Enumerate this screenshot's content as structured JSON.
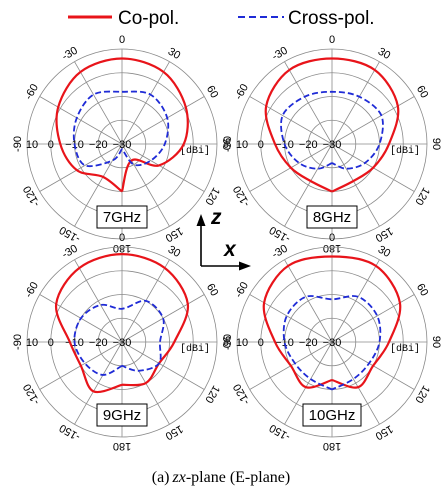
{
  "legend": {
    "copol_label": "Co-pol.",
    "xpol_label": "Cross-pol."
  },
  "colors": {
    "copol": "#e8141a",
    "xpol": "#1f2bd6",
    "grid": "#8a8a8a"
  },
  "axis_letters": {
    "z": "z",
    "x": "x"
  },
  "caption": {
    "prefix": "(a)",
    "plane": "zx",
    "suffix": "-plane (E-plane)"
  },
  "chart_data": [
    {
      "type": "polar",
      "frequency_label": "7GHz",
      "unit_label": "[dBi]",
      "radial_ticks": [
        "10",
        "0",
        "-10",
        "-20",
        "-30"
      ],
      "radial_range": [
        -30,
        10
      ],
      "angle_ticks": [
        "0",
        "30",
        "60",
        "90",
        "120",
        "150",
        "180",
        "-150",
        "-120",
        "-90",
        "-60",
        "-30"
      ],
      "series": [
        {
          "name": "Co-pol.",
          "style": "solid",
          "angles": [
            -180,
            -150,
            -120,
            -90,
            -60,
            -30,
            0,
            30,
            60,
            90,
            120,
            150,
            180
          ],
          "values": [
            -10,
            -14,
            -8,
            -4,
            1,
            5,
            6,
            5,
            1,
            -4,
            -12,
            -22,
            -10
          ]
        },
        {
          "name": "Cross-pol.",
          "style": "dashed",
          "angles": [
            -180,
            -150,
            -120,
            -90,
            -60,
            -30,
            0,
            30,
            60,
            90,
            120,
            150,
            180
          ],
          "values": [
            -28,
            -22,
            -12,
            -10,
            -8,
            -6,
            -8,
            -6,
            -8,
            -12,
            -16,
            -20,
            -28
          ]
        }
      ]
    },
    {
      "type": "polar",
      "frequency_label": "8GHz",
      "unit_label": "[dBi]",
      "radial_ticks": [
        "10",
        "0",
        "-10",
        "-20",
        "-30"
      ],
      "radial_range": [
        -30,
        10
      ],
      "angle_ticks": [
        "0",
        "30",
        "60",
        "90",
        "120",
        "150",
        "180",
        "-150",
        "-120",
        "-90",
        "-60",
        "-30"
      ],
      "series": [
        {
          "name": "Co-pol.",
          "style": "solid",
          "angles": [
            -180,
            -150,
            -120,
            -90,
            -60,
            -30,
            0,
            30,
            60,
            90,
            120,
            150,
            180
          ],
          "values": [
            -10,
            -12,
            -10,
            -6,
            2,
            6,
            6,
            6,
            2,
            -6,
            -10,
            -12,
            -10
          ]
        },
        {
          "name": "Cross-pol.",
          "style": "dashed",
          "angles": [
            -180,
            -150,
            -120,
            -90,
            -60,
            -30,
            0,
            30,
            60,
            90,
            120,
            150,
            180
          ],
          "values": [
            -22,
            -18,
            -14,
            -10,
            -6,
            -7,
            -8,
            -7,
            -6,
            -10,
            -14,
            -18,
            -22
          ]
        }
      ]
    },
    {
      "type": "polar",
      "frequency_label": "9GHz",
      "unit_label": "[dBi]",
      "radial_ticks": [
        "10",
        "0",
        "-10",
        "-20",
        "-30"
      ],
      "radial_range": [
        -30,
        10
      ],
      "angle_ticks": [
        "0",
        "30",
        "60",
        "90",
        "120",
        "150",
        "180",
        "-150",
        "-120",
        "-90",
        "-60",
        "-30"
      ],
      "series": [
        {
          "name": "Co-pol.",
          "style": "solid",
          "angles": [
            -180,
            -150,
            -120,
            -90,
            -60,
            -30,
            0,
            30,
            60,
            90,
            120,
            150,
            180
          ],
          "values": [
            -12,
            -6,
            -10,
            -8,
            2,
            6,
            7,
            6,
            2,
            -8,
            -12,
            -10,
            -12
          ]
        },
        {
          "name": "Cross-pol.",
          "style": "dashed",
          "angles": [
            -180,
            -150,
            -120,
            -90,
            -60,
            -30,
            0,
            30,
            60,
            90,
            120,
            150,
            180
          ],
          "values": [
            -20,
            -14,
            -12,
            -10,
            -10,
            -12,
            -16,
            -10,
            -10,
            -14,
            -12,
            -16,
            -20
          ]
        }
      ]
    },
    {
      "type": "polar",
      "frequency_label": "10GHz",
      "unit_label": "[dBi]",
      "radial_ticks": [
        "10",
        "0",
        "-10",
        "-20",
        "-30"
      ],
      "radial_range": [
        -30,
        10
      ],
      "angle_ticks": [
        "0",
        "30",
        "60",
        "90",
        "120",
        "150",
        "180",
        "-150",
        "-120",
        "-90",
        "-60",
        "-30"
      ],
      "series": [
        {
          "name": "Co-pol.",
          "style": "solid",
          "angles": [
            -180,
            -150,
            -120,
            -90,
            -60,
            -30,
            0,
            30,
            60,
            90,
            120,
            150,
            180
          ],
          "values": [
            -14,
            -8,
            -10,
            -6,
            3,
            7,
            6,
            7,
            3,
            -6,
            -10,
            -8,
            -14
          ]
        },
        {
          "name": "Cross-pol.",
          "style": "dashed",
          "angles": [
            -180,
            -150,
            -120,
            -90,
            -60,
            -30,
            0,
            30,
            60,
            90,
            120,
            150,
            180
          ],
          "values": [
            -10,
            -12,
            -12,
            -10,
            -8,
            -8,
            -12,
            -8,
            -8,
            -10,
            -12,
            -12,
            -10
          ]
        }
      ]
    }
  ]
}
